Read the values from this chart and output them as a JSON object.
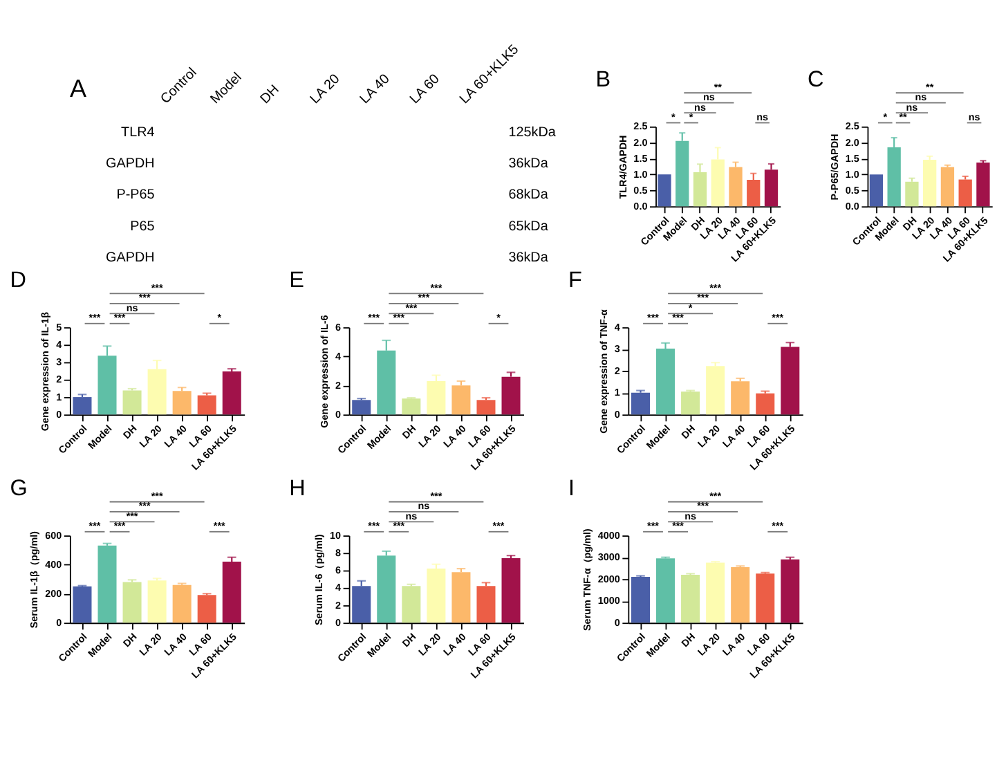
{
  "chart_data": [
    {
      "type": "other",
      "title": "A",
      "categories": [
        "Control",
        "Model",
        "DH",
        "LA 20",
        "LA 40",
        "LA 60",
        "LA 60+KLK5"
      ],
      "annotations": [
        "TLR4",
        "125kDa",
        "GAPDH",
        "36kDa",
        "P-P65",
        "68kDa",
        "P65",
        "65kDa",
        "GAPDH",
        "36kDa"
      ]
    },
    {
      "type": "bar",
      "title": "B",
      "ylabel": "TLR4/GAPDH",
      "categories": [
        "Control",
        "Model",
        "DH",
        "LA 20",
        "LA 40",
        "LA 60",
        "LA 60+KLK5"
      ],
      "values": [
        1.0,
        2.05,
        1.07,
        1.47,
        1.23,
        0.83,
        1.15
      ],
      "errors": [
        null,
        [
          2.05,
          2.3
        ],
        [
          1.07,
          1.32
        ],
        [
          1.47,
          1.84
        ],
        [
          1.23,
          1.38
        ],
        [
          0.83,
          1.03
        ],
        [
          1.15,
          1.33
        ]
      ],
      "colors": [
        "#4a5fa8",
        "#5fbfa6",
        "#d2e898",
        "#fdfcb0",
        "#fcb86a",
        "#ec5e46",
        "#a1124a"
      ],
      "ylim": [
        0,
        2.5
      ],
      "yticks": [
        {
          "value": 0,
          "label": "0.0"
        },
        0.5,
        {
          "value": 1,
          "label": "1.0"
        },
        1.5,
        {
          "value": 2,
          "label": "2.0"
        },
        2.5
      ],
      "annotations": [
        "*",
        "*",
        "ns",
        "ns",
        "**",
        "ns"
      ]
    },
    {
      "type": "bar",
      "title": "C",
      "ylabel": "P-P65/GAPDH",
      "categories": [
        "Control",
        "Model",
        "DH",
        "LA 20",
        "LA 40",
        "LA 60",
        "LA 60+KLK5"
      ],
      "values": [
        1.0,
        1.85,
        0.77,
        1.46,
        1.23,
        0.84,
        1.37
      ],
      "errors": [
        null,
        [
          1.85,
          2.15
        ],
        [
          0.77,
          0.88
        ],
        [
          1.46,
          1.57
        ],
        [
          1.23,
          1.29
        ],
        [
          0.84,
          0.94
        ],
        [
          1.37,
          1.43
        ]
      ],
      "colors": [
        "#4a5fa8",
        "#5fbfa6",
        "#d2e898",
        "#fdfcb0",
        "#fcb86a",
        "#ec5e46",
        "#a1124a"
      ],
      "ylim": [
        0,
        2.5
      ],
      "yticks": [
        {
          "value": 0,
          "label": "0.0"
        },
        0.5,
        {
          "value": 1,
          "label": "1.0"
        },
        1.5,
        {
          "value": 2,
          "label": "2.0"
        },
        2.5
      ],
      "annotations": [
        "*",
        "**",
        "ns",
        "ns",
        "**",
        "ns"
      ]
    },
    {
      "type": "bar",
      "title": "D",
      "ylabel": "Gene expression of IL-1β",
      "categories": [
        "Control",
        "Model",
        "DH",
        "LA 20",
        "LA 40",
        "LA 60",
        "LA 60+KLK5"
      ],
      "values": [
        1.0,
        3.37,
        1.38,
        2.6,
        1.35,
        1.1,
        2.47
      ],
      "errors": [
        [
          1.0,
          1.15
        ],
        [
          3.37,
          3.92
        ],
        [
          1.38,
          1.48
        ],
        [
          2.6,
          3.1
        ],
        [
          1.35,
          1.55
        ],
        [
          1.1,
          1.22
        ],
        [
          2.47,
          2.62
        ]
      ],
      "colors": [
        "#4a5fa8",
        "#5fbfa6",
        "#d2e898",
        "#fdfcb0",
        "#fcb86a",
        "#ec5e46",
        "#a1124a"
      ],
      "ylim": [
        0,
        5
      ],
      "yticks": [
        0,
        1,
        2,
        3,
        4,
        5
      ],
      "annotations": [
        "***",
        "***",
        "ns",
        "***",
        "***",
        "*"
      ]
    },
    {
      "type": "bar",
      "title": "E",
      "ylabel": "Gene expression of IL-6",
      "categories": [
        "Control",
        "Model",
        "DH",
        "LA 20",
        "LA 40",
        "LA 60",
        "LA 60+KLK5"
      ],
      "values": [
        1.0,
        4.4,
        1.1,
        2.3,
        2.0,
        1.0,
        2.6
      ],
      "errors": [
        [
          1.0,
          1.1
        ],
        [
          4.4,
          5.1
        ],
        [
          1.1,
          1.15
        ],
        [
          2.3,
          2.7
        ],
        [
          2.0,
          2.3
        ],
        [
          1.0,
          1.15
        ],
        [
          2.6,
          2.9
        ]
      ],
      "colors": [
        "#4a5fa8",
        "#5fbfa6",
        "#d2e898",
        "#fdfcb0",
        "#fcb86a",
        "#ec5e46",
        "#a1124a"
      ],
      "ylim": [
        0,
        6
      ],
      "yticks": [
        0,
        2,
        4,
        6
      ],
      "annotations": [
        "***",
        "***",
        "***",
        "***",
        "***",
        "*"
      ]
    },
    {
      "type": "bar",
      "title": "F",
      "ylabel": "Gene expression of TNF-α",
      "categories": [
        "Control",
        "Model",
        "DH",
        "LA 20",
        "LA 40",
        "LA 60",
        "LA 60+KLK5"
      ],
      "values": [
        1.0,
        3.02,
        1.05,
        2.22,
        1.52,
        0.97,
        3.1
      ],
      "errors": [
        [
          1.0,
          1.1
        ],
        [
          3.02,
          3.28
        ],
        [
          1.05,
          1.1
        ],
        [
          2.22,
          2.38
        ],
        [
          1.52,
          1.66
        ],
        [
          0.97,
          1.07
        ],
        [
          3.1,
          3.3
        ]
      ],
      "colors": [
        "#4a5fa8",
        "#5fbfa6",
        "#d2e898",
        "#fdfcb0",
        "#fcb86a",
        "#ec5e46",
        "#a1124a"
      ],
      "ylim": [
        0,
        4
      ],
      "yticks": [
        0,
        1,
        2,
        3,
        4
      ],
      "annotations": [
        "***",
        "***",
        "*",
        "***",
        "***",
        "***"
      ]
    },
    {
      "type": "bar",
      "title": "G",
      "ylabel": "Serum IL-1β（pg/ml)",
      "categories": [
        "Control",
        "Model",
        "DH",
        "LA 20",
        "LA 40",
        "LA 60",
        "LA 60+KLK5"
      ],
      "values": [
        250,
        530,
        280,
        290,
        260,
        190,
        420
      ],
      "errors": [
        [
          250,
          255
        ],
        [
          530,
          545
        ],
        [
          280,
          295
        ],
        [
          290,
          305
        ],
        [
          260,
          270
        ],
        [
          190,
          200
        ],
        [
          420,
          450
        ]
      ],
      "colors": [
        "#4a5fa8",
        "#5fbfa6",
        "#d2e898",
        "#fdfcb0",
        "#fcb86a",
        "#ec5e46",
        "#a1124a"
      ],
      "ylim": [
        0,
        600
      ],
      "yticks": [
        0,
        200,
        400,
        600
      ],
      "annotations": [
        "***",
        "***",
        "***",
        "***",
        "***",
        "***"
      ]
    },
    {
      "type": "bar",
      "title": "H",
      "ylabel": "Serum IL-6（pg/ml)",
      "categories": [
        "Control",
        "Model",
        "DH",
        "LA 20",
        "LA 40",
        "LA 60",
        "LA 60+KLK5"
      ],
      "values": [
        4.2,
        7.7,
        4.2,
        6.2,
        5.8,
        4.2,
        7.4
      ],
      "errors": [
        [
          4.2,
          4.8
        ],
        [
          7.7,
          8.2
        ],
        [
          4.2,
          4.4
        ],
        [
          6.2,
          6.7
        ],
        [
          5.8,
          6.2
        ],
        [
          4.2,
          4.6
        ],
        [
          7.4,
          7.7
        ]
      ],
      "colors": [
        "#4a5fa8",
        "#5fbfa6",
        "#d2e898",
        "#fdfcb0",
        "#fcb86a",
        "#ec5e46",
        "#a1124a"
      ],
      "ylim": [
        0,
        10
      ],
      "yticks": [
        0,
        2,
        4,
        6,
        8,
        10
      ],
      "annotations": [
        "***",
        "***",
        "ns",
        "ns",
        "***",
        "***"
      ]
    },
    {
      "type": "bar",
      "title": "I",
      "ylabel": "Serum TNF-α（pg/ml)",
      "categories": [
        "Control",
        "Model",
        "DH",
        "LA 20",
        "LA 40",
        "LA 60",
        "LA 60+KLK5"
      ],
      "values": [
        2100,
        2950,
        2200,
        2750,
        2550,
        2250,
        2900
      ],
      "errors": [
        [
          2100,
          2150
        ],
        [
          2950,
          3000
        ],
        [
          2200,
          2250
        ],
        [
          2750,
          2800
        ],
        [
          2550,
          2600
        ],
        [
          2250,
          2300
        ],
        [
          2900,
          3000
        ]
      ],
      "colors": [
        "#4a5fa8",
        "#5fbfa6",
        "#d2e898",
        "#fdfcb0",
        "#fcb86a",
        "#ec5e46",
        "#a1124a"
      ],
      "ylim": [
        0,
        4000
      ],
      "yticks": [
        0,
        1000,
        2000,
        3000,
        4000
      ],
      "annotations": [
        "***",
        "***",
        "ns",
        "***",
        "***",
        "***"
      ]
    }
  ]
}
